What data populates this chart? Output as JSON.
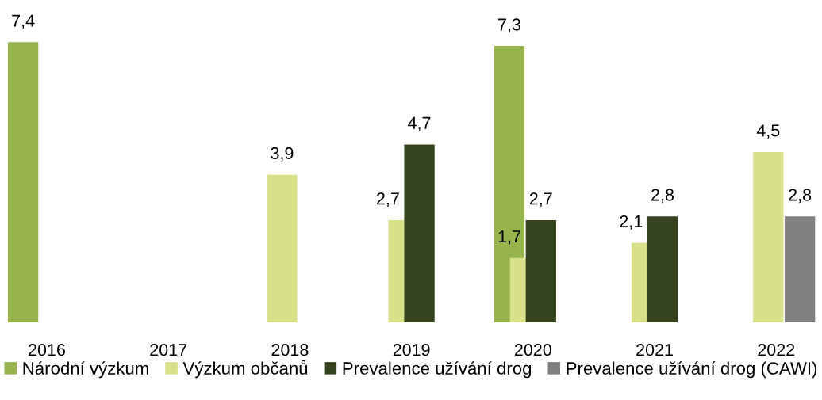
{
  "chart_data": {
    "type": "bar",
    "categories": [
      "2016",
      "2017",
      "2018",
      "2019",
      "2020",
      "2021",
      "2022"
    ],
    "series": [
      {
        "name": "Národní výzkum",
        "color": "#96b34c",
        "values": [
          7.4,
          null,
          null,
          null,
          7.3,
          null,
          null
        ],
        "value_labels": [
          "7,4",
          null,
          null,
          null,
          "7,3",
          null,
          null
        ]
      },
      {
        "name": "Výzkum občanů",
        "color": "#d8e08a",
        "values": [
          null,
          null,
          3.9,
          2.7,
          1.7,
          2.1,
          4.5
        ],
        "value_labels": [
          null,
          null,
          "3,9",
          "2,7",
          "1,7",
          "2,1",
          "4,5"
        ]
      },
      {
        "name": "Prevalence užívání drog",
        "color": "#35441f",
        "values": [
          null,
          null,
          null,
          4.7,
          2.7,
          2.8,
          null
        ],
        "value_labels": [
          null,
          null,
          null,
          "4,7",
          "2,7",
          "2,8",
          null
        ]
      },
      {
        "name": "Prevalence užívání drog (CAWI)",
        "color": "#808080",
        "values": [
          null,
          null,
          null,
          null,
          null,
          null,
          2.8
        ],
        "value_labels": [
          null,
          null,
          null,
          null,
          null,
          null,
          "2,8"
        ]
      }
    ],
    "legend": "bottom",
    "grid": false,
    "tick_labels": "x"
  }
}
